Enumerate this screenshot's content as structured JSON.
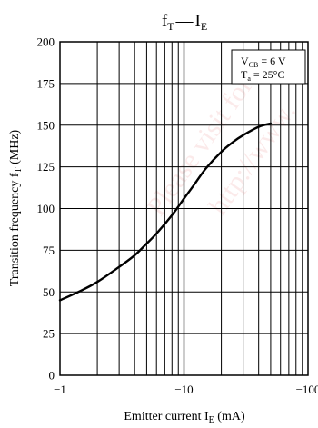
{
  "chart_data": {
    "type": "line",
    "title": {
      "main": "f",
      "main_sub": "T",
      "dash": "—",
      "second": "I",
      "second_sub": "E"
    },
    "xlabel": {
      "prefix": "Emitter current  I",
      "sub": "E",
      "suffix": " (mA)"
    },
    "ylabel": {
      "prefix": "Transition frequency  f",
      "sub": "T",
      "suffix": " (MHz)"
    },
    "x_scale": "log",
    "xlim": [
      -1,
      -100
    ],
    "ylim": [
      0,
      200
    ],
    "x_tick_labels": [
      "−1",
      "−10",
      "−100"
    ],
    "x_tick_values": [
      -1,
      -10,
      -100
    ],
    "y_tick_values": [
      0,
      25,
      50,
      75,
      100,
      125,
      150,
      175,
      200
    ],
    "y_tick_labels": [
      "0",
      "25",
      "50",
      "75",
      "100",
      "125",
      "150",
      "175",
      "200"
    ],
    "grid": true,
    "conditions": [
      {
        "main": "V",
        "sub": "CB",
        "rest": " = 6 V"
      },
      {
        "main": "T",
        "sub": "a",
        "rest": " = 25°C"
      }
    ],
    "legend_position": "top-right",
    "series": [
      {
        "x": [
          -1,
          -1.5,
          -2,
          -3,
          -4,
          -5,
          -6,
          -8,
          -10,
          -12,
          -15,
          -20,
          -25,
          -30,
          -40,
          -50
        ],
        "y": [
          45,
          51,
          56,
          65,
          72,
          79,
          85,
          96,
          106,
          114,
          124,
          134,
          140,
          144,
          149,
          151
        ]
      }
    ]
  },
  "watermark": [
    "Please visit for",
    "http://www."
  ]
}
